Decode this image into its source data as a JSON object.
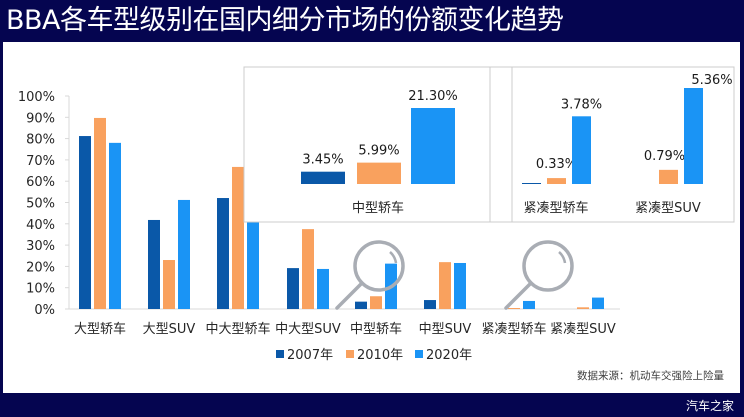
{
  "title": "BBA各车型级别在国内细分市场的份额变化趋势",
  "source": "数据来源：机动车交强险上险量",
  "watermark": "汽车之家",
  "colors": {
    "frame": "#050550",
    "s2007": "#0A58A8",
    "s2010": "#F9A15E",
    "s2020": "#1A94F5",
    "magnifier": "#A9ADB4",
    "inset_border": "#CCCCCC"
  },
  "chart_data": [
    {
      "type": "bar",
      "title": "BBA各车型级别在国内细分市场的份额变化趋势",
      "xlabel": "",
      "ylabel": "",
      "ylim": [
        0,
        100
      ],
      "yticks": [
        "0%",
        "10%",
        "20%",
        "30%",
        "40%",
        "50%",
        "60%",
        "70%",
        "80%",
        "90%",
        "100%"
      ],
      "legend_position": "bottom",
      "grid": false,
      "categories": [
        "大型轿车",
        "大型SUV",
        "中大型轿车",
        "中大型SUV",
        "中型轿车",
        "中型SUV",
        "紧凑型轿车",
        "紧凑型SUV"
      ],
      "series": [
        {
          "name": "2007年",
          "color_key": "s2007",
          "values": [
            81.2,
            41.8,
            52.1,
            19.2,
            3.45,
            4.2,
            0.0,
            0.0
          ]
        },
        {
          "name": "2010年",
          "color_key": "s2010",
          "values": [
            89.7,
            23.0,
            66.7,
            37.5,
            5.99,
            22.0,
            0.33,
            0.79
          ]
        },
        {
          "name": "2020年",
          "color_key": "s2020",
          "values": [
            78.0,
            51.2,
            68.0,
            18.8,
            21.3,
            21.6,
            3.78,
            5.36
          ]
        }
      ]
    },
    {
      "type": "bar",
      "title": "中型轿车 (zoom inset)",
      "categories": [
        "中型轿车"
      ],
      "series": [
        {
          "name": "2007年",
          "values": [
            3.45
          ],
          "label": "3.45%"
        },
        {
          "name": "2010年",
          "values": [
            5.99
          ],
          "label": "5.99%"
        },
        {
          "name": "2020年",
          "values": [
            21.3
          ],
          "label": "21.30%"
        }
      ]
    },
    {
      "type": "bar",
      "title": "紧凑型 (zoom inset)",
      "categories": [
        "紧凑型轿车",
        "紧凑型SUV"
      ],
      "series": [
        {
          "name": "2007年",
          "values": [
            0.0,
            0.0
          ],
          "labels": [
            "",
            ""
          ]
        },
        {
          "name": "2010年",
          "values": [
            0.33,
            0.79
          ],
          "labels": [
            "0.33%",
            "0.79%"
          ]
        },
        {
          "name": "2020年",
          "values": [
            3.78,
            5.36
          ],
          "labels": [
            "3.78%",
            "5.36%"
          ]
        }
      ]
    }
  ]
}
